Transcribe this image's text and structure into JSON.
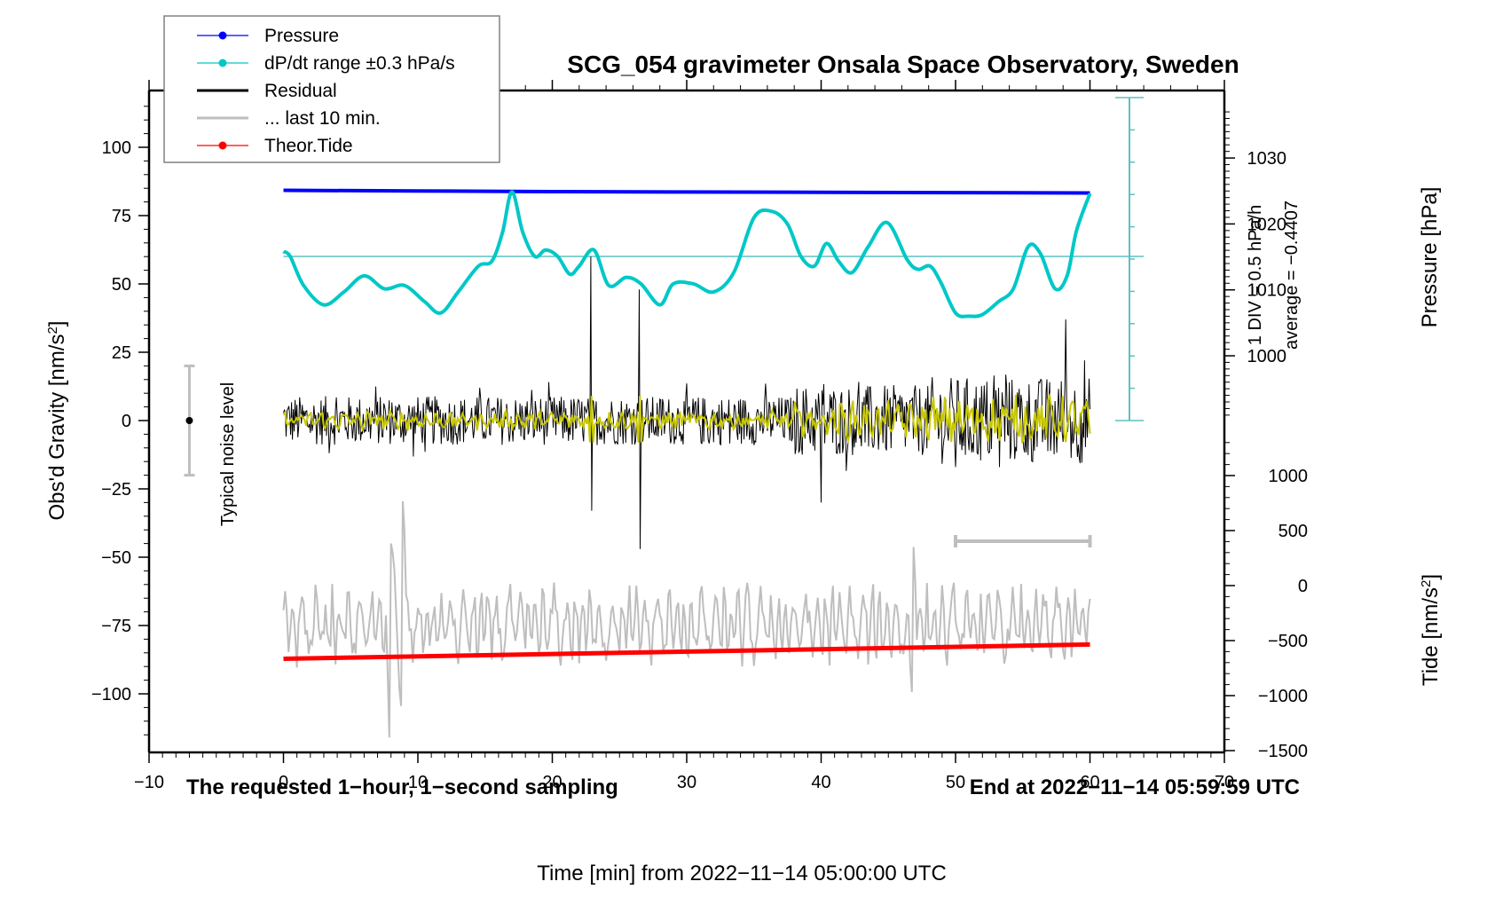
{
  "chart_data": {
    "type": "line",
    "title": "SCG_054 gravimeter Onsala Space Observatory, Sweden",
    "xlabel": "Time [min] from 2022−11−14 05:00:00 UTC",
    "ylabel_left": "Obs'd Gravity [nm/s²]",
    "ylabel_right_pressure": "Pressure [hPa]",
    "ylabel_right_tide": "Tide [nm/s²]",
    "xlim": [
      -10,
      70
    ],
    "ylim_left": [
      -120,
      120
    ],
    "pressure_axis_range": [
      990,
      1038
    ],
    "tide_axis_range": [
      -1500,
      1500
    ],
    "grid": false,
    "legend_position": "top-left (outside, overlapping plot)",
    "x_ticks": [
      -10,
      0,
      10,
      20,
      30,
      40,
      50,
      60,
      70
    ],
    "x_tick_labels": [
      "−10",
      "0",
      "10",
      "20",
      "30",
      "40",
      "50",
      "60",
      "70"
    ],
    "y_left_ticks": [
      100,
      75,
      50,
      25,
      0,
      -25,
      -50,
      -75,
      -100
    ],
    "y_left_tick_labels": [
      "100",
      "75",
      "50",
      "25",
      "0",
      "−25",
      "−50",
      "−75",
      "−100"
    ],
    "pressure_ticks": [
      1030,
      1020,
      1010,
      1000
    ],
    "pressure_tick_labels": [
      "1030",
      "1020",
      "1010",
      "1000"
    ],
    "tide_ticks": [
      1000,
      500,
      0,
      -500,
      -1000,
      -1500
    ],
    "tide_tick_labels": [
      "1000",
      "500",
      "0",
      "−500",
      "−1000",
      "−1500"
    ],
    "legend": [
      {
        "label": "Pressure",
        "color": "#0000ff",
        "marker": "dot"
      },
      {
        "label": "dP/dt range ±0.3 hPa/s",
        "color": "#00c8c8",
        "marker": "dot"
      },
      {
        "label": "Residual",
        "color": "#000000",
        "marker": "none"
      },
      {
        "label": "... last 10 min.",
        "color": "#bebebe",
        "marker": "none"
      },
      {
        "label": "Theor.Tide",
        "color": "#ff0000",
        "marker": "dot"
      }
    ],
    "annotations": {
      "bottom_left": "The requested 1−hour, 1−second sampling",
      "bottom_right": "End at 2022−11−14 05:59:59 UTC",
      "dpdt_scale": "1 DIV = 0.5 hPa/h",
      "dpdt_average": "average = −0.4407",
      "noise_label": "Typical noise level"
    },
    "noise_bar": {
      "center": 0,
      "half_range": 20,
      "x": -7
    },
    "last10_bar": {
      "x_start": 50,
      "x_end": 60,
      "y": -30
    },
    "series": [
      {
        "name": "Pressure",
        "axis": "pressure",
        "color": "#0000ff",
        "x": [
          0,
          10,
          20,
          30,
          40,
          50,
          60
        ],
        "values": [
          1025.1,
          1025.0,
          1024.9,
          1024.85,
          1024.8,
          1024.75,
          1024.7
        ]
      },
      {
        "name": "dP/dt",
        "axis": "dpdt_div",
        "color": "#00c8c8",
        "center_div": 0,
        "x": [
          0,
          0.5,
          1.5,
          3,
          4.5,
          6,
          7.5,
          9,
          10.5,
          11.7,
          13,
          14.5,
          15.5,
          16.3,
          17,
          17.8,
          18.7,
          19.5,
          20.4,
          21.3,
          22,
          23.1,
          24.2,
          25.5,
          26.6,
          28,
          29,
          30.5,
          32,
          33.5,
          35,
          36.3,
          37.5,
          38.5,
          39.5,
          40.4,
          41.3,
          42.3,
          43.5,
          44.9,
          46.4,
          47.2,
          48.1,
          48.9,
          50,
          51,
          52,
          53.2,
          54.3,
          55.4,
          56.3,
          57.4,
          58.3,
          59,
          60
        ],
        "values": [
          0.15,
          0.0,
          -0.9,
          -1.5,
          -1.1,
          -0.6,
          -1.0,
          -0.9,
          -1.4,
          -1.75,
          -1.1,
          -0.3,
          -0.15,
          0.75,
          2.0,
          0.75,
          0.0,
          0.2,
          0.0,
          -0.55,
          -0.3,
          0.2,
          -0.9,
          -0.65,
          -0.85,
          -1.5,
          -0.85,
          -0.85,
          -1.1,
          -0.5,
          1.2,
          1.4,
          1.0,
          0.0,
          -0.3,
          0.4,
          -0.15,
          -0.5,
          0.3,
          1.05,
          -0.1,
          -0.4,
          -0.3,
          -0.8,
          -1.75,
          -1.85,
          -1.8,
          -1.4,
          -1.0,
          0.3,
          0.1,
          -1.0,
          -0.6,
          0.8,
          1.95
        ]
      },
      {
        "name": "Residual",
        "axis": "left",
        "color": "#000000",
        "x_range": [
          0,
          60
        ],
        "typical_envelope": [
          -14,
          14
        ],
        "spikes": [
          {
            "x": 22.9,
            "min": -33,
            "max": 60
          },
          {
            "x": 26.5,
            "min": -47,
            "max": 48
          },
          {
            "x": 58.2,
            "min": -25,
            "max": 37
          },
          {
            "x": 50,
            "min": -17,
            "max": 33
          },
          {
            "x": 40,
            "min": -30,
            "max": 28
          }
        ]
      },
      {
        "name": "Residual (smoothed)",
        "axis": "left",
        "color": "#c8c800",
        "x_range": [
          0,
          60
        ],
        "typical_envelope": [
          -4,
          4
        ]
      },
      {
        "name": "... last 10 min.",
        "axis": "left",
        "color": "#bebebe",
        "x_range": [
          0,
          60
        ],
        "center": -75,
        "typical_envelope": [
          -90,
          -60
        ],
        "spikes": [
          {
            "x": 8.0,
            "min": -122,
            "max": -45
          },
          {
            "x": 8.8,
            "min": -105,
            "max": -27
          },
          {
            "x": 46.8,
            "min": -100,
            "max": -44
          }
        ]
      },
      {
        "name": "Theor.Tide",
        "axis": "tide",
        "color": "#ff0000",
        "x": [
          0,
          60
        ],
        "values": [
          -665,
          -535
        ]
      }
    ]
  }
}
